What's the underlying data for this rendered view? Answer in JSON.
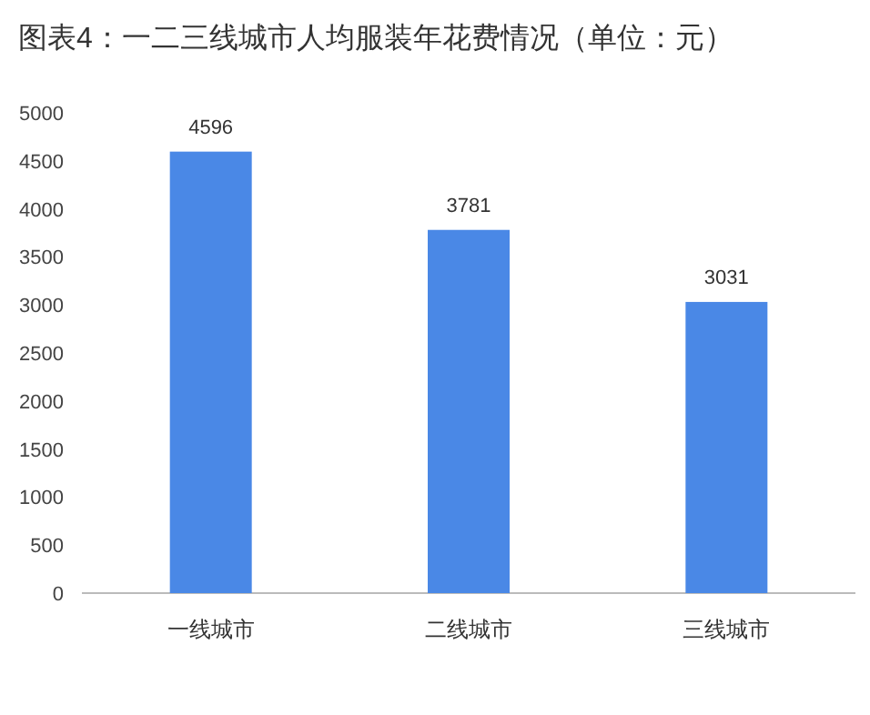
{
  "chart_data": {
    "type": "bar",
    "title": "图表4：一二三线城市人均服装年花费情况（单位：元）",
    "categories": [
      "一线城市",
      "二线城市",
      "三线城市"
    ],
    "values": [
      4596,
      3781,
      3031
    ],
    "color": "#4a88e6",
    "ylim": [
      0,
      5000
    ],
    "yticks": [
      0,
      500,
      1000,
      1500,
      2000,
      2500,
      3000,
      3500,
      4000,
      4500,
      5000
    ],
    "data_labels": true
  }
}
